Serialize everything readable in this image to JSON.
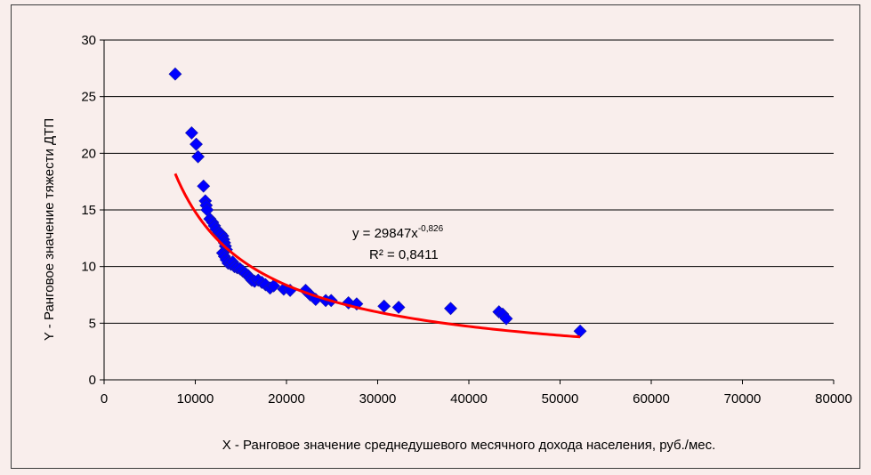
{
  "chart_data": {
    "type": "scatter",
    "title": "",
    "xlabel": "X - Ранговое значение среднедушевого месячного дохода населения, руб./мес.",
    "ylabel": "Y - Ранговое значение тяжести ДТП",
    "xlim": [
      0,
      80000
    ],
    "ylim": [
      0,
      30
    ],
    "xticks": [
      "0",
      "10000",
      "20000",
      "30000",
      "40000",
      "50000",
      "60000",
      "70000",
      "80000"
    ],
    "yticks": [
      "0",
      "5",
      "10",
      "15",
      "20",
      "25",
      "30"
    ],
    "xtick_values": [
      0,
      10000,
      20000,
      30000,
      40000,
      50000,
      60000,
      70000,
      80000
    ],
    "ytick_values": [
      0,
      5,
      10,
      15,
      20,
      25,
      30
    ],
    "grid": "horizontal",
    "points": [
      [
        7800,
        27.0
      ],
      [
        9600,
        21.8
      ],
      [
        10100,
        20.8
      ],
      [
        10300,
        19.7
      ],
      [
        10900,
        17.1
      ],
      [
        11100,
        15.8
      ],
      [
        11200,
        15.4
      ],
      [
        11300,
        15.0
      ],
      [
        11600,
        14.2
      ],
      [
        11900,
        13.9
      ],
      [
        12100,
        13.6
      ],
      [
        12300,
        13.3
      ],
      [
        12600,
        13.0
      ],
      [
        12800,
        12.9
      ],
      [
        13000,
        12.7
      ],
      [
        13100,
        12.4
      ],
      [
        13200,
        12.1
      ],
      [
        13300,
        11.8
      ],
      [
        13400,
        11.5
      ],
      [
        13000,
        11.2
      ],
      [
        13200,
        10.9
      ],
      [
        13400,
        10.6
      ],
      [
        13600,
        10.3
      ],
      [
        13900,
        10.2
      ],
      [
        14100,
        10.4
      ],
      [
        14300,
        10.0
      ],
      [
        14600,
        9.9
      ],
      [
        14900,
        9.8
      ],
      [
        15200,
        9.6
      ],
      [
        15500,
        9.4
      ],
      [
        15800,
        9.2
      ],
      [
        16000,
        9.0
      ],
      [
        16200,
        8.8
      ],
      [
        16500,
        8.7
      ],
      [
        16900,
        8.8
      ],
      [
        17300,
        8.6
      ],
      [
        17700,
        8.4
      ],
      [
        18200,
        8.1
      ],
      [
        18600,
        8.3
      ],
      [
        19700,
        8.0
      ],
      [
        20400,
        7.9
      ],
      [
        22100,
        7.9
      ],
      [
        22600,
        7.5
      ],
      [
        23200,
        7.1
      ],
      [
        24300,
        7.0
      ],
      [
        24900,
        7.0
      ],
      [
        26800,
        6.8
      ],
      [
        27700,
        6.7
      ],
      [
        30700,
        6.5
      ],
      [
        32300,
        6.4
      ],
      [
        38000,
        6.3
      ],
      [
        43300,
        6.0
      ],
      [
        43700,
        5.8
      ],
      [
        44100,
        5.4
      ],
      [
        52200,
        4.3
      ]
    ],
    "trendline": {
      "type": "power",
      "a": 29847,
      "b": -0.826,
      "x_range": [
        7800,
        52200
      ],
      "color": "#ff0000"
    },
    "equation": {
      "text": "y = 29847x",
      "exponent": "-0,826",
      "r2": "R² = 0,8411"
    },
    "marker_color": "#0000ff",
    "background": "#f9eeec"
  }
}
